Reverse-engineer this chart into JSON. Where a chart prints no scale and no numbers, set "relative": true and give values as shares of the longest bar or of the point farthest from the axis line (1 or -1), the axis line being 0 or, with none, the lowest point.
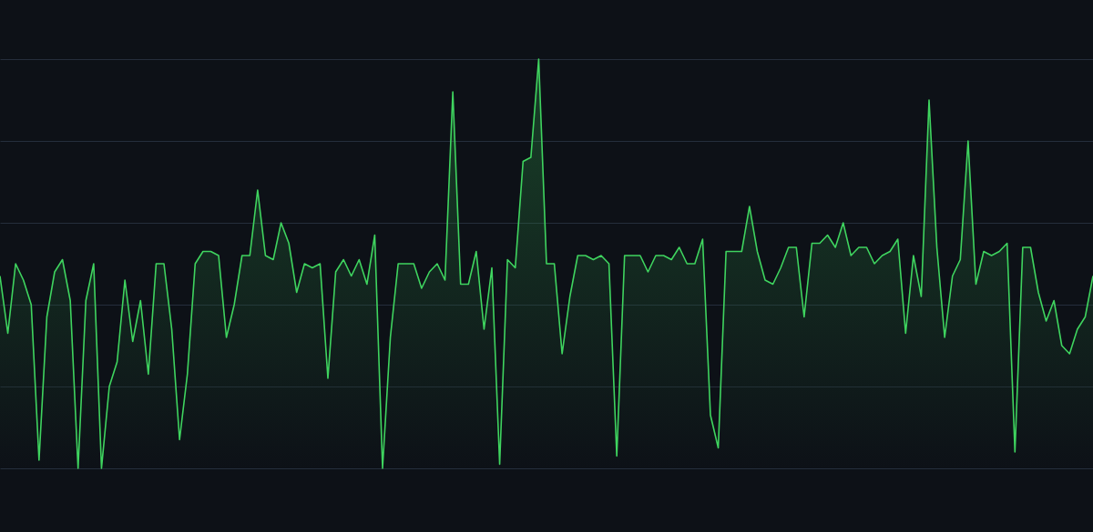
{
  "chart_data": {
    "type": "area",
    "relative": true,
    "grid": "y",
    "categories": [
      null,
      null,
      null,
      null,
      null,
      null,
      null,
      null,
      null,
      null,
      null,
      null,
      null,
      null,
      null,
      null,
      null,
      null,
      null,
      null,
      null,
      null,
      null,
      null,
      null,
      null,
      null,
      null,
      null,
      null,
      null,
      null,
      null,
      null,
      null,
      null,
      null,
      null,
      null,
      null,
      null,
      null,
      null,
      null,
      null,
      null,
      null,
      null,
      null,
      null,
      null,
      null,
      null,
      null,
      null,
      null,
      null,
      null,
      null,
      null,
      null,
      null,
      null,
      null,
      null,
      null,
      null,
      null,
      null,
      null,
      null,
      null,
      null,
      null,
      null,
      null,
      null,
      null,
      null,
      null,
      null,
      null,
      null,
      null,
      null,
      null,
      null,
      null,
      null,
      null,
      null,
      null,
      null,
      null,
      null,
      null,
      null,
      null,
      null,
      null,
      null,
      null,
      null,
      null,
      null,
      null,
      null,
      null,
      null,
      null,
      null,
      null,
      null,
      null,
      null,
      null,
      null,
      null,
      null,
      null,
      null,
      null,
      null,
      null,
      null,
      null,
      null,
      null,
      null,
      null,
      null,
      null,
      null,
      null,
      null,
      null,
      null,
      null,
      null,
      null,
      null
    ],
    "series": [
      {
        "color": "#3fd45f",
        "values": [
          0.47,
          0.33,
          0.5,
          0.46,
          0.4,
          0.02,
          0.37,
          0.48,
          0.51,
          0.41,
          0,
          0.41,
          0.5,
          0,
          0.2,
          0.26,
          0.46,
          0.31,
          0.41,
          0.23,
          0.5,
          0.5,
          0.34,
          0.07,
          0.23,
          0.5,
          0.53,
          0.53,
          0.52,
          0.32,
          0.4,
          0.52,
          0.52,
          0.68,
          0.52,
          0.51,
          0.6,
          0.55,
          0.43,
          0.5,
          0.49,
          0.5,
          0.22,
          0.48,
          0.51,
          0.47,
          0.51,
          0.45,
          0.57,
          0,
          0.32,
          0.5,
          0.5,
          0.5,
          0.44,
          0.48,
          0.5,
          0.46,
          0.92,
          0.45,
          0.45,
          0.53,
          0.34,
          0.49,
          0.01,
          0.51,
          0.49,
          0.75,
          0.76,
          1,
          0.5,
          0.5,
          0.28,
          0.42,
          0.52,
          0.52,
          0.51,
          0.52,
          0.5,
          0.03,
          0.52,
          0.52,
          0.52,
          0.48,
          0.52,
          0.52,
          0.51,
          0.54,
          0.5,
          0.5,
          0.56,
          0.13,
          0.05,
          0.53,
          0.53,
          0.53,
          0.64,
          0.53,
          0.46,
          0.45,
          0.49,
          0.54,
          0.54,
          0.37,
          0.55,
          0.55,
          0.57,
          0.54,
          0.6,
          0.52,
          0.54,
          0.54,
          0.5,
          0.52,
          0.53,
          0.56,
          0.33,
          0.52,
          0.42,
          0.9,
          0.54,
          0.32,
          0.47,
          0.51,
          0.8,
          0.45,
          0.53,
          0.52,
          0.53,
          0.55,
          0.04,
          0.54,
          0.54,
          0.43,
          0.36,
          0.41,
          0.3,
          0.28,
          0.34,
          0.37,
          0.47
        ]
      }
    ]
  }
}
